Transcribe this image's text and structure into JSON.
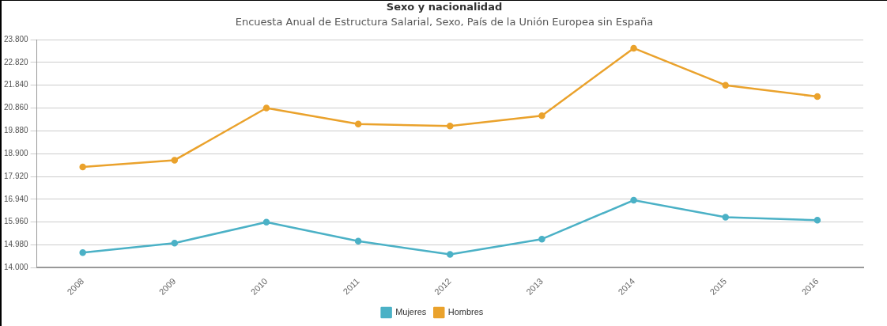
{
  "chart_data": {
    "type": "line",
    "title": "Sexo y nacionalidad",
    "subtitle": "Encuesta Anual de Estructura Salarial, Sexo, País de la Unión Europea sin España",
    "categories": [
      "2008",
      "2009",
      "2010",
      "2011",
      "2012",
      "2013",
      "2014",
      "2015",
      "2016"
    ],
    "series": [
      {
        "name": "Mujeres",
        "color": "#4bb1c6",
        "values": [
          14650,
          15060,
          15960,
          15140,
          14570,
          15230,
          16900,
          16170,
          16040
        ]
      },
      {
        "name": "Hombres",
        "color": "#eaa22c",
        "values": [
          18330,
          18620,
          20860,
          20170,
          20090,
          20530,
          23430,
          21840,
          21350
        ]
      }
    ],
    "ylim": [
      14000,
      23800
    ],
    "yticks": [
      {
        "value": 14000,
        "label": "14.000"
      },
      {
        "value": 14980,
        "label": "14.980"
      },
      {
        "value": 15960,
        "label": "15.960"
      },
      {
        "value": 16940,
        "label": "16.940"
      },
      {
        "value": 17920,
        "label": "17.920"
      },
      {
        "value": 18900,
        "label": "18.900"
      },
      {
        "value": 19880,
        "label": "19.880"
      },
      {
        "value": 20860,
        "label": "20.860"
      },
      {
        "value": 21840,
        "label": "21.840"
      },
      {
        "value": 22820,
        "label": "22.820"
      },
      {
        "value": 23800,
        "label": "23.800"
      }
    ],
    "grid": "y",
    "legend": "bottom",
    "marker": "circle",
    "line_style": "solid"
  }
}
